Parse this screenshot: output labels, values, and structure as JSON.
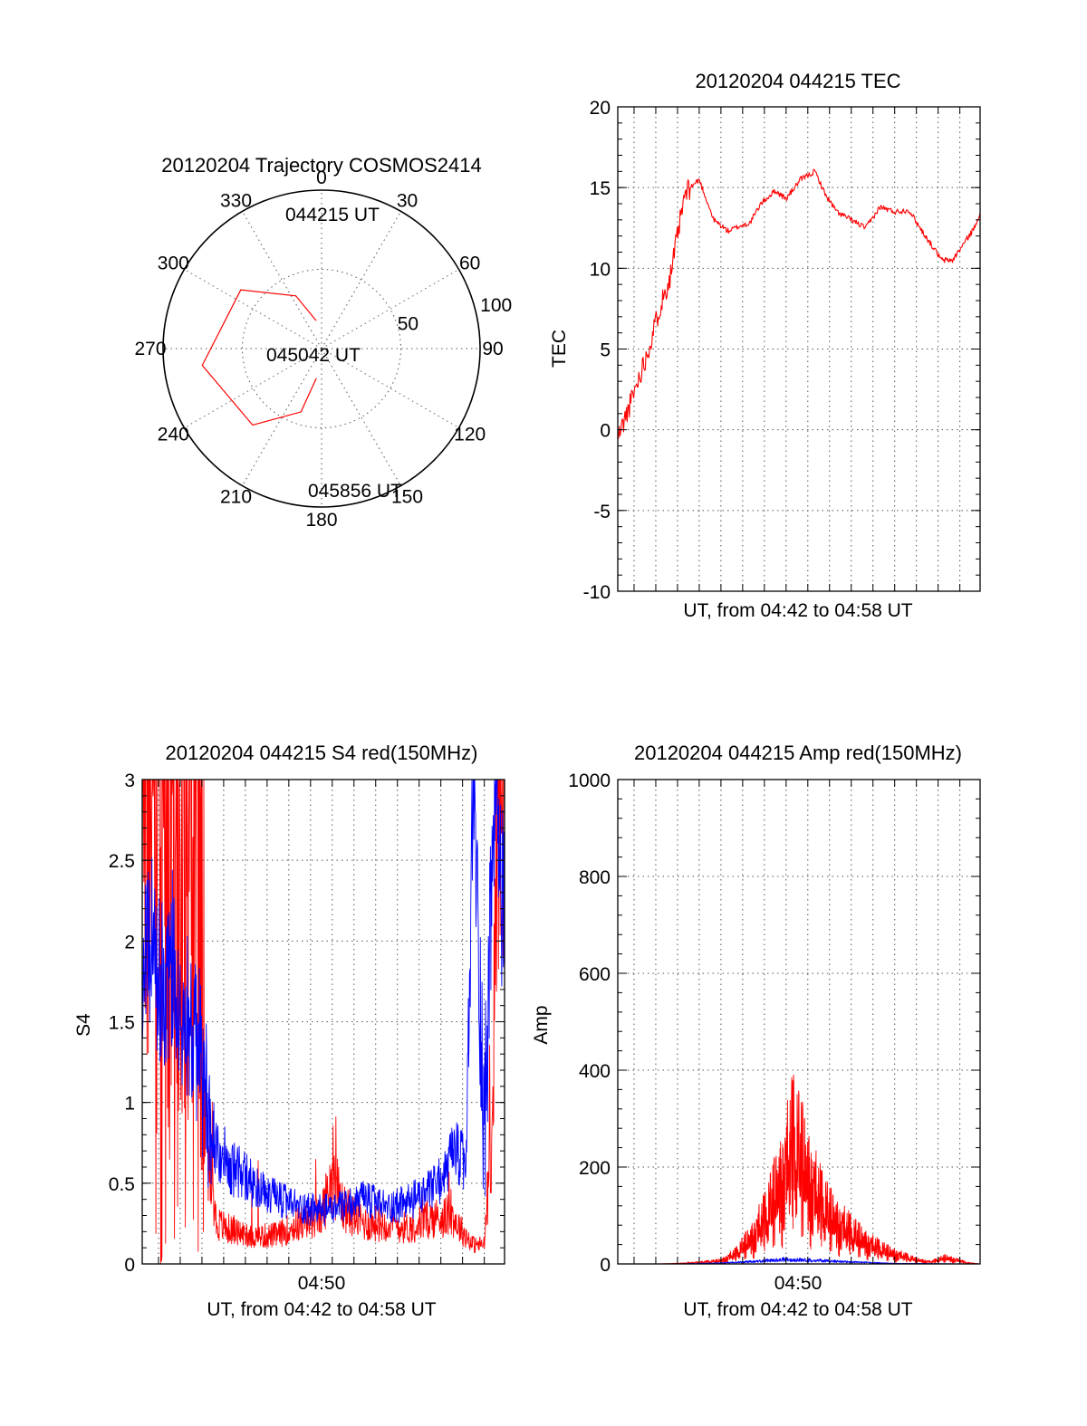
{
  "chart_data": [
    {
      "id": "trajectory",
      "type": "polar",
      "title": "20120204 Trajectory COSMOS2414",
      "angle_labels": [
        "0",
        "30",
        "60",
        "90",
        "120",
        "150",
        "180",
        "210",
        "240",
        "270",
        "300",
        "330"
      ],
      "radial_labels": [
        "50",
        "100"
      ],
      "radial_range": [
        0,
        100
      ],
      "grid": true,
      "series": [
        {
          "color": "#ff0000",
          "points": [
            {
              "az": 349,
              "el": 18
            },
            {
              "az": 334,
              "el": 37
            },
            {
              "az": 306,
              "el": 63
            },
            {
              "az": 262,
              "el": 76
            },
            {
              "az": 222,
              "el": 65
            },
            {
              "az": 198,
              "el": 42
            },
            {
              "az": 190,
              "el": 19
            }
          ]
        }
      ],
      "annotations": [
        "044215 UT",
        "045042 UT",
        "045856 UT"
      ]
    },
    {
      "id": "tec",
      "type": "line",
      "title": "20120204 044215 TEC",
      "xlabel": "UT, from 04:42 to 04:58 UT",
      "ylabel": "TEC",
      "xlim": [
        "04:42:15",
        "04:58:56"
      ],
      "ylim": [
        -10,
        20
      ],
      "yticks": [
        "20",
        "15",
        "10",
        "5",
        "0",
        "-5",
        "-10"
      ],
      "grid": true,
      "series": [
        {
          "color": "#ff0000",
          "x": [
            "04:42:15",
            "04:42:40",
            "04:43:10",
            "04:43:40",
            "04:44:10",
            "04:44:40",
            "04:45:00",
            "04:45:20",
            "04:45:35",
            "04:46:00",
            "04:46:40",
            "04:47:20",
            "04:47:50",
            "04:48:20",
            "04:48:50",
            "04:49:30",
            "04:50:00",
            "04:50:40",
            "04:51:20",
            "04:51:50",
            "04:52:20",
            "04:53:00",
            "04:53:40",
            "04:54:20",
            "04:55:00",
            "04:55:40",
            "04:56:10",
            "04:56:40",
            "04:57:10",
            "04:57:40",
            "04:58:10",
            "04:58:40",
            "04:58:56"
          ],
          "values": [
            -0.5,
            1.0,
            3.0,
            5.0,
            7.5,
            9.5,
            12.0,
            14.5,
            15.0,
            15.5,
            13.0,
            12.3,
            12.6,
            12.8,
            14.0,
            14.8,
            14.3,
            15.5,
            16.0,
            14.5,
            13.5,
            13.0,
            12.5,
            13.8,
            13.5,
            13.6,
            12.5,
            11.5,
            10.5,
            10.5,
            11.5,
            12.5,
            13.5
          ]
        }
      ]
    },
    {
      "id": "s4",
      "type": "line",
      "title": "20120204 044215 S4 red(150MHz)",
      "xlabel": "UT, from 04:42 to 04:58 UT",
      "ylabel": "S4",
      "xtick": "04:50",
      "xlim": [
        "04:42:15",
        "04:58:56"
      ],
      "ylim": [
        0,
        3
      ],
      "yticks": [
        "3",
        "2.5",
        "2",
        "1.5",
        "1",
        "0.5",
        "0"
      ],
      "grid": true,
      "series": [
        {
          "color": "#ff0000",
          "x": [
            "04:42:15",
            "04:43:00",
            "04:43:40",
            "04:44:20",
            "04:45:00",
            "04:45:40",
            "04:46:30",
            "04:47:30",
            "04:48:30",
            "04:49:30",
            "04:50:30",
            "04:51:00",
            "04:51:30",
            "04:52:30",
            "04:53:30",
            "04:54:30",
            "04:55:30",
            "04:56:30",
            "04:57:00",
            "04:57:30",
            "04:58:00",
            "04:58:20",
            "04:58:40",
            "04:58:56"
          ],
          "values": [
            3.0,
            3.0,
            3.0,
            2.6,
            1.0,
            0.25,
            0.2,
            0.17,
            0.18,
            0.25,
            0.3,
            0.55,
            0.35,
            0.25,
            0.25,
            0.22,
            0.28,
            0.3,
            0.2,
            0.12,
            0.12,
            0.8,
            3.0,
            3.0
          ]
        },
        {
          "color": "#0000ff",
          "x": [
            "04:42:15",
            "04:42:40",
            "04:43:10",
            "04:43:40",
            "04:44:10",
            "04:44:40",
            "04:45:10",
            "04:45:40",
            "04:46:20",
            "04:47:00",
            "04:47:40",
            "04:48:30",
            "04:49:30",
            "04:50:30",
            "04:51:30",
            "04:52:30",
            "04:53:30",
            "04:54:30",
            "04:55:30",
            "04:56:10",
            "04:56:40",
            "04:57:10",
            "04:57:30",
            "04:58:00",
            "04:58:30",
            "04:58:56"
          ],
          "values": [
            1.8,
            2.0,
            1.7,
            1.9,
            1.6,
            1.5,
            1.0,
            0.75,
            0.6,
            0.55,
            0.45,
            0.4,
            0.35,
            0.33,
            0.35,
            0.4,
            0.35,
            0.38,
            0.45,
            0.55,
            0.7,
            0.6,
            3.0,
            0.8,
            3.0,
            2.0
          ]
        }
      ]
    },
    {
      "id": "amp",
      "type": "line",
      "title": "20120204 044215 Amp red(150MHz)",
      "xlabel": "UT, from 04:42 to 04:58 UT",
      "ylabel": "Amp",
      "xtick": "04:50",
      "xlim": [
        "04:42:15",
        "04:58:56"
      ],
      "ylim": [
        0,
        1000
      ],
      "yticks": [
        "1000",
        "800",
        "600",
        "400",
        "200",
        "0"
      ],
      "grid": true,
      "series": [
        {
          "color": "#ff0000",
          "x": [
            "04:42:15",
            "04:44:00",
            "04:45:30",
            "04:47:00",
            "04:47:40",
            "04:48:20",
            "04:49:00",
            "04:49:30",
            "04:50:00",
            "04:50:20",
            "04:50:40",
            "04:51:00",
            "04:51:30",
            "04:52:00",
            "04:52:40",
            "04:53:20",
            "04:54:00",
            "04:54:40",
            "04:55:20",
            "04:56:00",
            "04:56:40",
            "04:57:20",
            "04:57:50",
            "04:58:20",
            "04:58:56"
          ],
          "values": [
            0,
            0,
            2,
            8,
            25,
            60,
            110,
            170,
            240,
            300,
            260,
            220,
            160,
            120,
            90,
            65,
            45,
            30,
            20,
            10,
            5,
            15,
            10,
            3,
            0
          ]
        },
        {
          "color": "#0000ff",
          "x": [
            "04:42:15",
            "04:45:00",
            "04:47:00",
            "04:48:30",
            "04:50:00",
            "04:51:30",
            "04:53:00",
            "04:55:00",
            "04:58:56"
          ],
          "values": [
            0,
            0,
            2,
            5,
            9,
            7,
            4,
            1,
            0
          ]
        }
      ]
    }
  ]
}
